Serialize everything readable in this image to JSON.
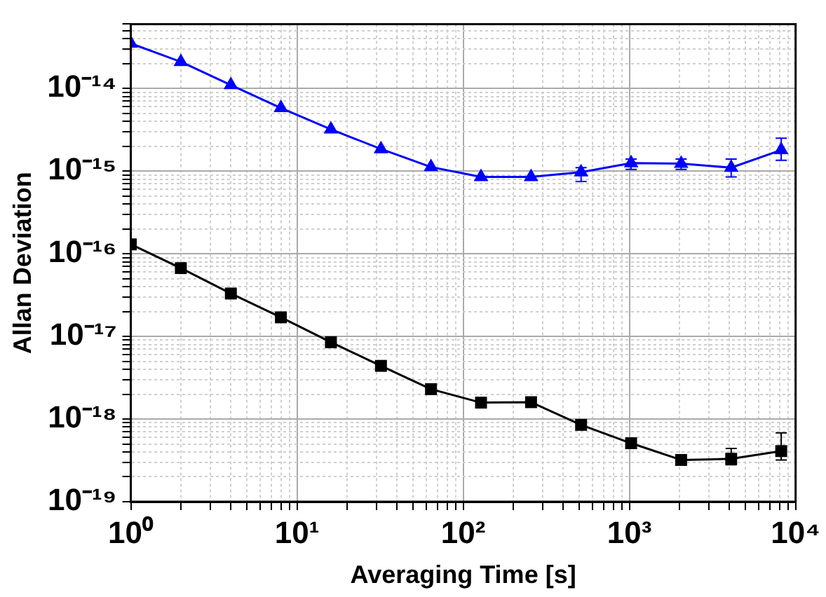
{
  "chart_data": {
    "type": "line",
    "xlabel": "Averaging Time [s]",
    "ylabel": "Allan Deviation",
    "log": "xy",
    "grid": true,
    "legend": false,
    "line_style": "solid",
    "x": [
      1,
      2,
      4,
      8,
      16,
      32,
      64,
      128,
      256,
      512,
      1024,
      2048,
      4096,
      8192
    ],
    "series": [
      {
        "color": "#0000ff",
        "marker": "triangle",
        "values": [
          3.5e-14,
          2.1e-14,
          1.1e-14,
          5.8e-15,
          3.2e-15,
          1.85e-15,
          1.12e-15,
          8.5e-16,
          8.5e-16,
          9.7e-16,
          1.25e-15,
          1.23e-15,
          1.1e-15,
          1.8e-15
        ],
        "errors": [
          null,
          null,
          null,
          null,
          null,
          null,
          null,
          null,
          null,
          [
            7.5e-16,
            1.1e-15
          ],
          [
            1.05e-15,
            1.4e-15
          ],
          [
            1.05e-15,
            1.4e-15
          ],
          [
            8.5e-16,
            1.4e-15
          ],
          [
            1.35e-15,
            2.5e-15
          ]
        ]
      },
      {
        "color": "#000000",
        "marker": "square",
        "values": [
          1.3e-16,
          6.7e-17,
          3.3e-17,
          1.7e-17,
          8.5e-18,
          4.4e-18,
          2.3e-18,
          1.58e-18,
          1.6e-18,
          8.5e-19,
          5.1e-19,
          3.2e-19,
          3.3e-19,
          4.1e-19
        ],
        "errors": [
          null,
          null,
          null,
          null,
          null,
          null,
          null,
          null,
          null,
          null,
          null,
          null,
          [
            2.8e-19,
            4.4e-19
          ],
          [
            3.2e-19,
            6.8e-19
          ]
        ]
      }
    ],
    "xlim": [
      1,
      10000
    ],
    "xticks": [
      {
        "value": 1,
        "label": "10⁰"
      },
      {
        "value": 2,
        "label": null
      },
      {
        "value": 3,
        "label": null
      },
      {
        "value": 4,
        "label": null
      },
      {
        "value": 5,
        "label": null
      },
      {
        "value": 6,
        "label": null
      },
      {
        "value": 7,
        "label": null
      },
      {
        "value": 8,
        "label": null
      },
      {
        "value": 9,
        "label": null
      },
      {
        "value": 10,
        "label": "10¹"
      },
      {
        "value": 20,
        "label": null
      },
      {
        "value": 30,
        "label": null
      },
      {
        "value": 40,
        "label": null
      },
      {
        "value": 50,
        "label": null
      },
      {
        "value": 60,
        "label": null
      },
      {
        "value": 70,
        "label": null
      },
      {
        "value": 80,
        "label": null
      },
      {
        "value": 90,
        "label": null
      },
      {
        "value": 100,
        "label": "10²"
      },
      {
        "value": 200,
        "label": null
      },
      {
        "value": 300,
        "label": null
      },
      {
        "value": 400,
        "label": null
      },
      {
        "value": 500,
        "label": null
      },
      {
        "value": 600,
        "label": null
      },
      {
        "value": 700,
        "label": null
      },
      {
        "value": 800,
        "label": null
      },
      {
        "value": 900,
        "label": null
      },
      {
        "value": 1000,
        "label": "10³"
      },
      {
        "value": 2000,
        "label": null
      },
      {
        "value": 3000,
        "label": null
      },
      {
        "value": 4000,
        "label": null
      },
      {
        "value": 5000,
        "label": null
      },
      {
        "value": 6000,
        "label": null
      },
      {
        "value": 7000,
        "label": null
      },
      {
        "value": 8000,
        "label": null
      },
      {
        "value": 9000,
        "label": null
      },
      {
        "value": 10000,
        "label": "10⁴"
      }
    ],
    "ylim": [
      1e-19,
      6e-14
    ],
    "yticks": [
      {
        "value": 1e-19,
        "label": "10⁻¹⁹"
      },
      {
        "value": 2e-19,
        "label": null
      },
      {
        "value": 3e-19,
        "label": null
      },
      {
        "value": 4e-19,
        "label": null
      },
      {
        "value": 5e-19,
        "label": null
      },
      {
        "value": 6e-19,
        "label": null
      },
      {
        "value": 7e-19,
        "label": null
      },
      {
        "value": 8e-19,
        "label": null
      },
      {
        "value": 9e-19,
        "label": null
      },
      {
        "value": 1e-18,
        "label": "10⁻¹⁸"
      },
      {
        "value": 2e-18,
        "label": null
      },
      {
        "value": 3e-18,
        "label": null
      },
      {
        "value": 4e-18,
        "label": null
      },
      {
        "value": 5e-18,
        "label": null
      },
      {
        "value": 6e-18,
        "label": null
      },
      {
        "value": 7e-18,
        "label": null
      },
      {
        "value": 8e-18,
        "label": null
      },
      {
        "value": 9e-18,
        "label": null
      },
      {
        "value": 1e-17,
        "label": "10⁻¹⁷"
      },
      {
        "value": 2e-17,
        "label": null
      },
      {
        "value": 3e-17,
        "label": null
      },
      {
        "value": 4e-17,
        "label": null
      },
      {
        "value": 5e-17,
        "label": null
      },
      {
        "value": 6e-17,
        "label": null
      },
      {
        "value": 7e-17,
        "label": null
      },
      {
        "value": 8e-17,
        "label": null
      },
      {
        "value": 9e-17,
        "label": null
      },
      {
        "value": 1e-16,
        "label": "10⁻¹⁶"
      },
      {
        "value": 2e-16,
        "label": null
      },
      {
        "value": 3e-16,
        "label": null
      },
      {
        "value": 4e-16,
        "label": null
      },
      {
        "value": 5e-16,
        "label": null
      },
      {
        "value": 6e-16,
        "label": null
      },
      {
        "value": 7e-16,
        "label": null
      },
      {
        "value": 8e-16,
        "label": null
      },
      {
        "value": 9e-16,
        "label": null
      },
      {
        "value": 1e-15,
        "label": "10⁻¹⁵"
      },
      {
        "value": 2e-15,
        "label": null
      },
      {
        "value": 3e-15,
        "label": null
      },
      {
        "value": 4e-15,
        "label": null
      },
      {
        "value": 5e-15,
        "label": null
      },
      {
        "value": 6e-15,
        "label": null
      },
      {
        "value": 7e-15,
        "label": null
      },
      {
        "value": 8e-15,
        "label": null
      },
      {
        "value": 9e-15,
        "label": null
      },
      {
        "value": 1e-14,
        "label": "10⁻¹⁴"
      },
      {
        "value": 2e-14,
        "label": null
      },
      {
        "value": 3e-14,
        "label": null
      },
      {
        "value": 4e-14,
        "label": null
      },
      {
        "value": 5e-14,
        "label": null
      },
      {
        "value": 6e-14,
        "label": null
      }
    ]
  }
}
